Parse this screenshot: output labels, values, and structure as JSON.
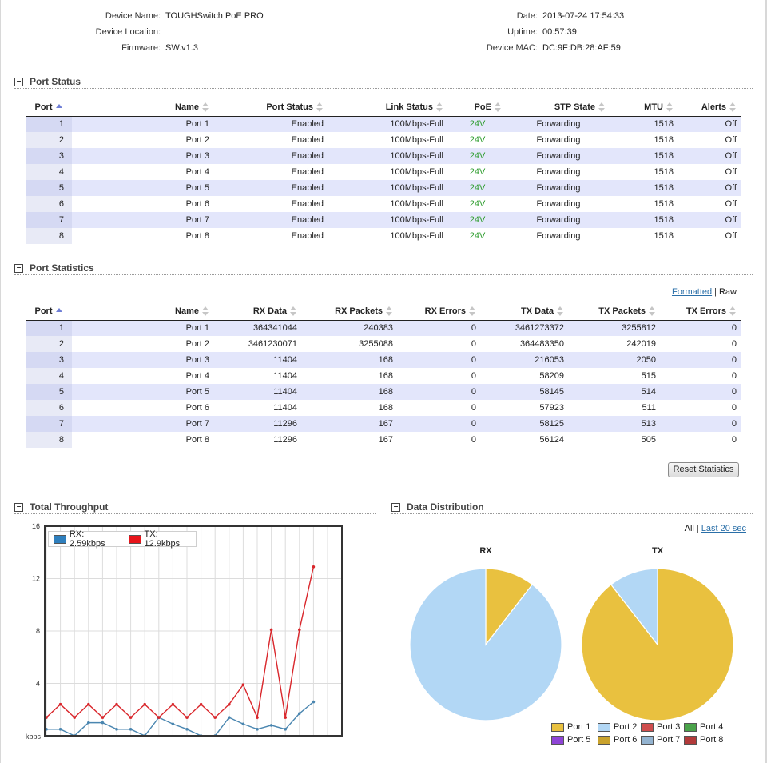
{
  "device": {
    "left": [
      {
        "label": "Device Name:",
        "value": "TOUGHSwitch PoE PRO"
      },
      {
        "label": "Device Location:",
        "value": ""
      },
      {
        "label": "Firmware:",
        "value": "SW.v1.3"
      }
    ],
    "right": [
      {
        "label": "Date:",
        "value": "2013-07-24 17:54:33"
      },
      {
        "label": "Uptime:",
        "value": "00:57:39"
      },
      {
        "label": "Device MAC:",
        "value": "DC:9F:DB:28:AF:59"
      }
    ]
  },
  "port_status": {
    "title": "Port Status",
    "collapse_symbol": "–",
    "columns": [
      "Port",
      "Name",
      "Port Status",
      "Link Status",
      "PoE",
      "STP State",
      "MTU",
      "Alerts"
    ],
    "rows": [
      [
        "1",
        "Port 1",
        "Enabled",
        "100Mbps-Full",
        "24V",
        "Forwarding",
        "1518",
        "Off"
      ],
      [
        "2",
        "Port 2",
        "Enabled",
        "100Mbps-Full",
        "24V",
        "Forwarding",
        "1518",
        "Off"
      ],
      [
        "3",
        "Port 3",
        "Enabled",
        "100Mbps-Full",
        "24V",
        "Forwarding",
        "1518",
        "Off"
      ],
      [
        "4",
        "Port 4",
        "Enabled",
        "100Mbps-Full",
        "24V",
        "Forwarding",
        "1518",
        "Off"
      ],
      [
        "5",
        "Port 5",
        "Enabled",
        "100Mbps-Full",
        "24V",
        "Forwarding",
        "1518",
        "Off"
      ],
      [
        "6",
        "Port 6",
        "Enabled",
        "100Mbps-Full",
        "24V",
        "Forwarding",
        "1518",
        "Off"
      ],
      [
        "7",
        "Port 7",
        "Enabled",
        "100Mbps-Full",
        "24V",
        "Forwarding",
        "1518",
        "Off"
      ],
      [
        "8",
        "Port 8",
        "Enabled",
        "100Mbps-Full",
        "24V",
        "Forwarding",
        "1518",
        "Off"
      ]
    ]
  },
  "port_statistics": {
    "title": "Port Statistics",
    "collapse_symbol": "–",
    "format_link": "Formatted",
    "separator": "|",
    "format_current": "Raw",
    "columns": [
      "Port",
      "Name",
      "RX Data",
      "RX Packets",
      "RX Errors",
      "TX Data",
      "TX Packets",
      "TX Errors"
    ],
    "rows": [
      [
        "1",
        "Port 1",
        "364341044",
        "240383",
        "0",
        "3461273372",
        "3255812",
        "0"
      ],
      [
        "2",
        "Port 2",
        "3461230071",
        "3255088",
        "0",
        "364483350",
        "242019",
        "0"
      ],
      [
        "3",
        "Port 3",
        "11404",
        "168",
        "0",
        "216053",
        "2050",
        "0"
      ],
      [
        "4",
        "Port 4",
        "11404",
        "168",
        "0",
        "58209",
        "515",
        "0"
      ],
      [
        "5",
        "Port 5",
        "11404",
        "168",
        "0",
        "58145",
        "514",
        "0"
      ],
      [
        "6",
        "Port 6",
        "11404",
        "168",
        "0",
        "57923",
        "511",
        "0"
      ],
      [
        "7",
        "Port 7",
        "11296",
        "167",
        "0",
        "58125",
        "513",
        "0"
      ],
      [
        "8",
        "Port 8",
        "11296",
        "167",
        "0",
        "56124",
        "505",
        "0"
      ]
    ],
    "reset_button": "Reset Statistics"
  },
  "throughput": {
    "title": "Total Throughput",
    "collapse_symbol": "–"
  },
  "distribution": {
    "title": "Data Distribution",
    "collapse_symbol": "–",
    "range_current": "All",
    "separator": "|",
    "range_link": "Last 20 sec",
    "legend": [
      {
        "label": "Port 1",
        "color": "#e9c13f"
      },
      {
        "label": "Port 2",
        "color": "#b2d7f5"
      },
      {
        "label": "Port 3",
        "color": "#cf4d4d"
      },
      {
        "label": "Port 4",
        "color": "#4aa34a"
      },
      {
        "label": "Port 5",
        "color": "#8e44d6"
      },
      {
        "label": "Port 6",
        "color": "#c9a22c"
      },
      {
        "label": "Port 7",
        "color": "#93b3d0"
      },
      {
        "label": "Port 8",
        "color": "#b23a3a"
      }
    ]
  },
  "chart_data": [
    {
      "type": "line",
      "ylabel": "kbps",
      "ylim": [
        0,
        16
      ],
      "yticks": [
        4,
        8,
        12,
        16
      ],
      "grid": true,
      "legend_placement": "top-left",
      "series": [
        {
          "name": "RX: 2.59kbps",
          "color": "#4a86b0",
          "values": [
            0.5,
            0.5,
            0,
            1,
            1,
            0.5,
            0.5,
            0,
            1.4,
            0.9,
            0.5,
            0,
            0,
            1.4,
            0.9,
            0.5,
            0.8,
            0.5,
            1.7,
            2.59
          ]
        },
        {
          "name": "TX: 12.9kbps",
          "color": "#d9262b",
          "values": [
            1.4,
            2.4,
            1.4,
            2.4,
            1.4,
            2.4,
            1.4,
            2.4,
            1.4,
            2.4,
            1.4,
            2.4,
            1.4,
            2.4,
            3.9,
            1.4,
            8.1,
            1.4,
            8.1,
            12.9
          ]
        }
      ]
    },
    {
      "type": "pie",
      "title": "RX",
      "slices": [
        {
          "label": "Port 1",
          "value": 10.5,
          "color": "#e9c13f"
        },
        {
          "label": "Port 2",
          "value": 89.5,
          "color": "#b2d7f5"
        }
      ]
    },
    {
      "type": "pie",
      "title": "TX",
      "slices": [
        {
          "label": "Port 1",
          "value": 89.5,
          "color": "#e9c13f"
        },
        {
          "label": "Port 2",
          "value": 10.5,
          "color": "#b2d7f5"
        }
      ]
    }
  ]
}
